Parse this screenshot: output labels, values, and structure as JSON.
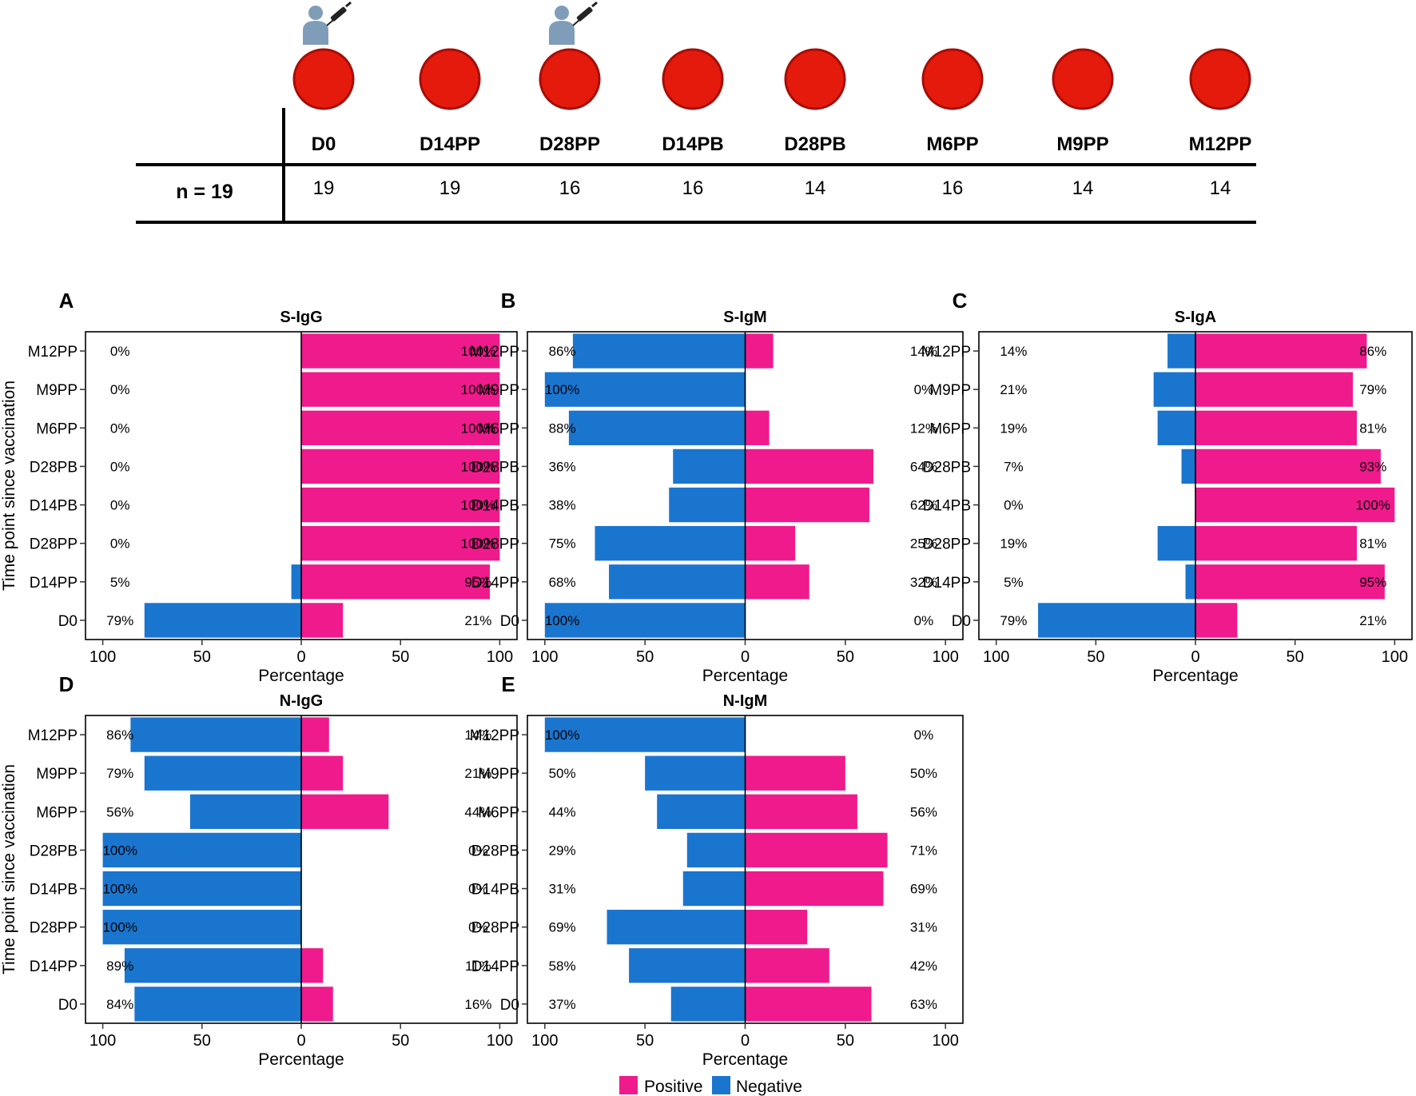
{
  "timeline": {
    "time_points": [
      "D0",
      "D14PP",
      "D28PP",
      "D14PB",
      "D28PB",
      "M6PP",
      "M9PP",
      "M12PP"
    ],
    "counts": [
      "19",
      "19",
      "16",
      "16",
      "14",
      "16",
      "14",
      "14"
    ],
    "n_label": "n = 19",
    "vaccination_at": [
      "D0",
      "D28PP"
    ],
    "colors": {
      "sample": "#e41a0c",
      "sample_border": "#a50d06",
      "person": "#7f9db8"
    },
    "icons": {
      "vaccination": "person-vaccination-icon",
      "sample": "blood-sample-icon"
    }
  },
  "legend": {
    "positive": "Positive",
    "negative": "Negative"
  },
  "colors": {
    "positive": "#ef1a8c",
    "negative": "#1a75cf"
  },
  "chart_data": [
    {
      "panel": "A",
      "type": "bar",
      "orientation": "horizontal-diverging",
      "title": "S-IgG",
      "xlabel": "Percentage",
      "ylabel": "Time point since vaccination",
      "categories": [
        "M12PP",
        "M9PP",
        "M6PP",
        "D28PB",
        "D14PB",
        "D28PP",
        "D14PP",
        "D0"
      ],
      "xticks": [
        "100",
        "50",
        "0",
        "50",
        "100"
      ],
      "xlim": [
        -100,
        100
      ],
      "series": [
        {
          "name": "Negative",
          "values": [
            0,
            0,
            0,
            0,
            0,
            0,
            5,
            79
          ],
          "labels": [
            "0%",
            "0%",
            "0%",
            "0%",
            "0%",
            "0%",
            "5%",
            "79%"
          ]
        },
        {
          "name": "Positive",
          "values": [
            100,
            100,
            100,
            100,
            100,
            100,
            95,
            21
          ],
          "labels": [
            "100%",
            "100%",
            "100%",
            "100%",
            "100%",
            "100%",
            "95%",
            "21%"
          ]
        }
      ]
    },
    {
      "panel": "B",
      "type": "bar",
      "orientation": "horizontal-diverging",
      "title": "S-IgM",
      "xlabel": "Percentage",
      "ylabel": "",
      "categories": [
        "M12PP",
        "M9PP",
        "M6PP",
        "D28PB",
        "D14PB",
        "D28PP",
        "D14PP",
        "D0"
      ],
      "xticks": [
        "100",
        "50",
        "0",
        "50",
        "100"
      ],
      "xlim": [
        -100,
        100
      ],
      "series": [
        {
          "name": "Negative",
          "values": [
            86,
            100,
            88,
            36,
            38,
            75,
            68,
            100
          ],
          "labels": [
            "86%",
            "100%",
            "88%",
            "36%",
            "38%",
            "75%",
            "68%",
            "100%"
          ]
        },
        {
          "name": "Positive",
          "values": [
            14,
            0,
            12,
            64,
            62,
            25,
            32,
            0
          ],
          "labels": [
            "14%",
            "0%",
            "12%",
            "64%",
            "62%",
            "25%",
            "32%",
            "0%"
          ]
        }
      ]
    },
    {
      "panel": "C",
      "type": "bar",
      "orientation": "horizontal-diverging",
      "title": "S-IgA",
      "xlabel": "Percentage",
      "ylabel": "",
      "categories": [
        "M12PP",
        "M9PP",
        "M6PP",
        "D28PB",
        "D14PB",
        "D28PP",
        "D14PP",
        "D0"
      ],
      "xticks": [
        "100",
        "50",
        "0",
        "50",
        "100"
      ],
      "xlim": [
        -100,
        100
      ],
      "series": [
        {
          "name": "Negative",
          "values": [
            14,
            21,
            19,
            7,
            0,
            19,
            5,
            79
          ],
          "labels": [
            "14%",
            "21%",
            "19%",
            "7%",
            "0%",
            "19%",
            "5%",
            "79%"
          ]
        },
        {
          "name": "Positive",
          "values": [
            86,
            79,
            81,
            93,
            100,
            81,
            95,
            21
          ],
          "labels": [
            "86%",
            "79%",
            "81%",
            "93%",
            "100%",
            "81%",
            "95%",
            "21%"
          ]
        }
      ]
    },
    {
      "panel": "D",
      "type": "bar",
      "orientation": "horizontal-diverging",
      "title": "N-IgG",
      "xlabel": "Percentage",
      "ylabel": "Time point since vaccination",
      "categories": [
        "M12PP",
        "M9PP",
        "M6PP",
        "D28PB",
        "D14PB",
        "D28PP",
        "D14PP",
        "D0"
      ],
      "xticks": [
        "100",
        "50",
        "0",
        "50",
        "100"
      ],
      "xlim": [
        -100,
        100
      ],
      "series": [
        {
          "name": "Negative",
          "values": [
            86,
            79,
            56,
            100,
            100,
            100,
            89,
            84
          ],
          "labels": [
            "86%",
            "79%",
            "56%",
            "100%",
            "100%",
            "100%",
            "89%",
            "84%"
          ]
        },
        {
          "name": "Positive",
          "values": [
            14,
            21,
            44,
            0,
            0,
            0,
            11,
            16
          ],
          "labels": [
            "14%",
            "21%",
            "44%",
            "0%",
            "0%",
            "0%",
            "11%",
            "16%"
          ]
        }
      ]
    },
    {
      "panel": "E",
      "type": "bar",
      "orientation": "horizontal-diverging",
      "title": "N-IgM",
      "xlabel": "Percentage",
      "ylabel": "",
      "categories": [
        "M12PP",
        "M9PP",
        "M6PP",
        "D28PB",
        "D14PB",
        "D28PP",
        "D14PP",
        "D0"
      ],
      "xticks": [
        "100",
        "50",
        "0",
        "50",
        "100"
      ],
      "xlim": [
        -100,
        100
      ],
      "series": [
        {
          "name": "Negative",
          "values": [
            100,
            50,
            44,
            29,
            31,
            69,
            58,
            37
          ],
          "labels": [
            "100%",
            "50%",
            "44%",
            "29%",
            "31%",
            "69%",
            "58%",
            "37%"
          ]
        },
        {
          "name": "Positive",
          "values": [
            0,
            50,
            56,
            71,
            69,
            31,
            42,
            63
          ],
          "labels": [
            "0%",
            "50%",
            "56%",
            "71%",
            "69%",
            "31%",
            "42%",
            "63%"
          ]
        }
      ]
    }
  ]
}
